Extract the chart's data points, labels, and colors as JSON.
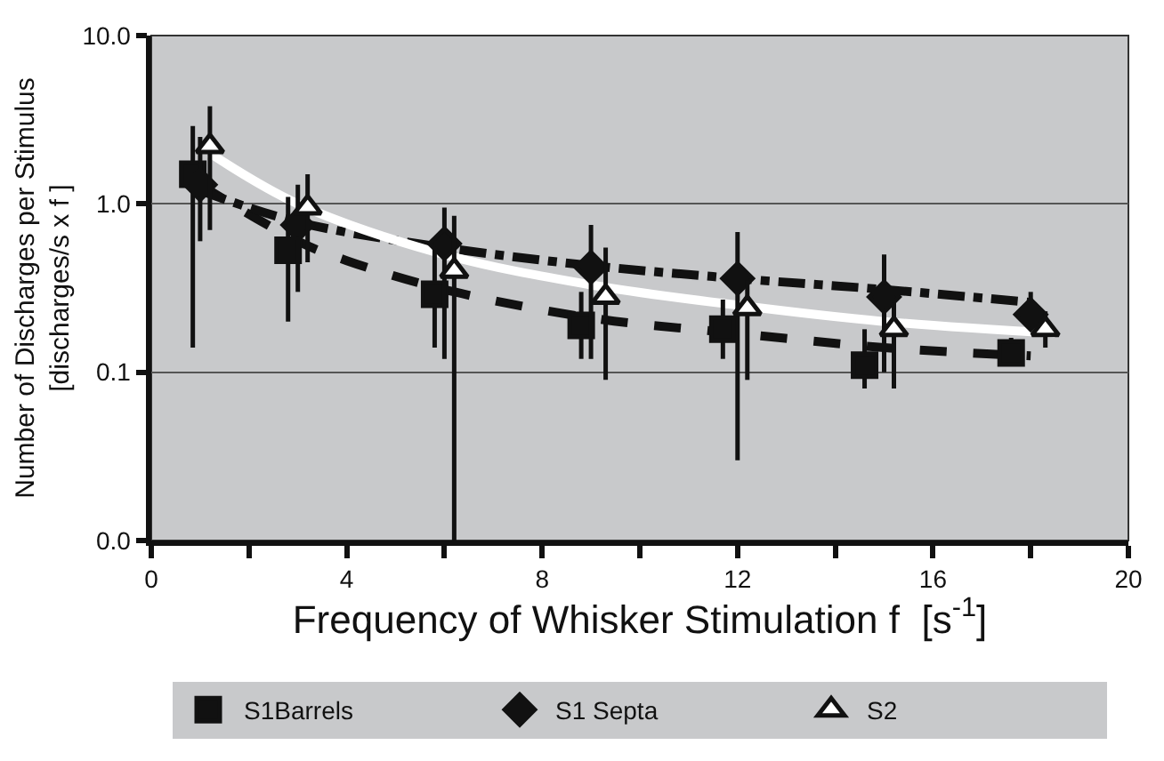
{
  "chart_data": {
    "type": "scatter",
    "xlabel": "Frequency of Whisker Stimulation f  [s$^{-1}$]",
    "ylabel": "Number of Discharges per Stimulus\n[discharges/s x f ]",
    "log": "y",
    "grid": "y",
    "legend": "bottom",
    "xlim": [
      0,
      20
    ],
    "xticks": [
      0,
      {
        "value": 2,
        "label": null
      },
      4,
      {
        "value": 6,
        "label": null
      },
      8,
      {
        "value": 10,
        "label": null
      },
      12,
      {
        "value": 14,
        "label": null
      },
      16,
      {
        "value": 18,
        "label": null
      },
      20
    ],
    "ylim": [
      0.01,
      10
    ],
    "yticks": [
      {
        "value": 0.01,
        "label": "0.0"
      },
      0.1,
      {
        "value": 1,
        "label": "1.0"
      },
      {
        "value": 10,
        "label": "10.0"
      }
    ],
    "series": [
      {
        "name": "S1Barrels",
        "color": "#111111",
        "marker": "square",
        "x": [
          0.85,
          2.8,
          5.8,
          8.8,
          11.7,
          14.6,
          17.6
        ],
        "values": [
          1.5,
          0.53,
          0.29,
          0.19,
          0.18,
          0.11,
          0.13
        ],
        "errors": [
          [
            0.14,
            2.9
          ],
          [
            0.2,
            1.1
          ],
          [
            0.14,
            0.55
          ],
          [
            0.12,
            0.3
          ],
          [
            0.12,
            0.27
          ],
          [
            0.08,
            0.18
          ],
          [
            0.11,
            0.16
          ]
        ]
      },
      {
        "name": "S1 Septa",
        "color": "#111111",
        "marker": "diamond",
        "x": [
          1.0,
          3.0,
          6.0,
          9.0,
          12.0,
          15.0,
          18.0
        ],
        "values": [
          1.3,
          0.75,
          0.58,
          0.42,
          0.36,
          0.28,
          0.22
        ],
        "errors": [
          [
            0.6,
            2.5
          ],
          [
            0.3,
            1.3
          ],
          [
            0.12,
            0.95
          ],
          [
            0.12,
            0.75
          ],
          [
            0.03,
            0.68
          ],
          [
            0.1,
            0.5
          ],
          [
            0.18,
            0.3
          ]
        ]
      },
      {
        "name": "S2",
        "color": "#ffffff",
        "marker": "triangle",
        "x": [
          1.2,
          3.2,
          6.2,
          9.3,
          12.2,
          15.2,
          18.3
        ],
        "values": [
          2.2,
          0.95,
          0.4,
          0.28,
          0.24,
          0.18,
          0.18
        ],
        "errors": [
          [
            0.7,
            3.8
          ],
          [
            0.45,
            1.5
          ],
          [
            0.01,
            0.85
          ],
          [
            0.09,
            0.55
          ],
          [
            0.09,
            0.35
          ],
          [
            0.08,
            0.26
          ],
          [
            0.14,
            0.23
          ]
        ]
      },
      {
        "type": "line",
        "color": "#111111",
        "line_style": "dashed",
        "x": [
          1,
          3,
          4,
          6,
          9,
          12,
          15,
          18
        ],
        "values": [
          1.3,
          0.6,
          0.46,
          0.31,
          0.21,
          0.17,
          0.14,
          0.125
        ]
      },
      {
        "type": "line",
        "color": "#111111",
        "line_style": "dashdot",
        "x": [
          1,
          3,
          6,
          9,
          12,
          15,
          18
        ],
        "values": [
          1.2,
          0.78,
          0.55,
          0.43,
          0.36,
          0.31,
          0.26
        ]
      },
      {
        "type": "line",
        "color": "#ffffff",
        "line_style": "solid",
        "x": [
          1.2,
          3,
          6,
          9,
          12,
          15,
          18.5
        ],
        "values": [
          2.0,
          1.0,
          0.5,
          0.33,
          0.25,
          0.2,
          0.17
        ]
      }
    ]
  }
}
